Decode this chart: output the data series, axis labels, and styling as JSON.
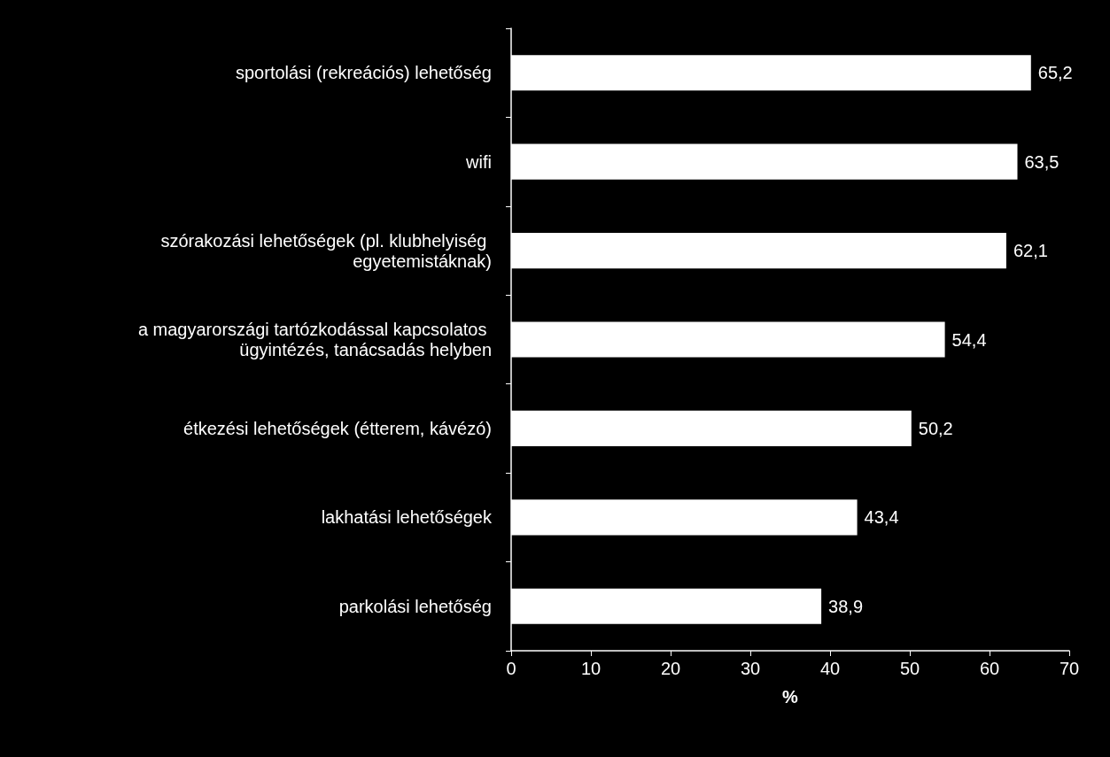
{
  "chart_data": {
    "type": "bar",
    "orientation": "horizontal",
    "xlabel": "%",
    "categories": [
      "sportolási (rekreációs) lehetőség",
      "wifi",
      "szórakozási lehetőségek (pl. klubhelyiség egyetemistáknak)",
      "a magyarországi tartózkodással kapcsolatos ügyintézés, tanácsadás helyben",
      "étkezési lehetőségek (étterem, kávézó)",
      "lakhatási lehetőségek",
      "parkolási lehetőség"
    ],
    "values": [
      65.2,
      63.5,
      62.1,
      54.4,
      50.2,
      43.4,
      38.9
    ],
    "value_labels": [
      "65,2",
      "63,5",
      "62,1",
      "54,4",
      "50,2",
      "43,4",
      "38,9"
    ],
    "color": "#ffffff",
    "xlim": [
      0,
      70
    ],
    "xticks": [
      0,
      10,
      20,
      30,
      40,
      50,
      60,
      70
    ],
    "grid": false
  }
}
